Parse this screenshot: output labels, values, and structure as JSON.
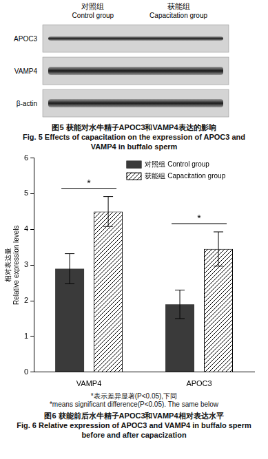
{
  "figure5": {
    "columns": [
      {
        "zh": "对照组",
        "en": "Control group"
      },
      {
        "zh": "获能组",
        "en": "Capacitation group"
      }
    ],
    "rows": [
      "APOC3",
      "VAMP4",
      "β-actin"
    ],
    "title": "图5  获能对水牛精子APOC3和VAMP4表达的影响",
    "subtitle": "Fig. 5    Effects of capacitation on the expression of APOC3 and VAMP4 in buffalo sperm"
  },
  "chart_data": {
    "type": "bar",
    "title": "图6  获能前后水牛精子APOC3和VAMP4相对表达水平",
    "subtitle": "Fig. 6    Relative expression of APOC3 and VAMP4 in buffalo sperm before and after capacization",
    "y_label": [
      "相对表达量",
      "Relative expression levels"
    ],
    "categories": [
      "VAMP4",
      "APOC3"
    ],
    "series": [
      {
        "name": "对照组 Control group",
        "color": "#3a3a3a",
        "marker": "solid",
        "values": [
          2.9,
          1.9
        ],
        "errors": [
          0.42,
          0.4
        ]
      },
      {
        "name": "获能组 Capacitation group",
        "color": "#000000",
        "marker": "hatched",
        "values": [
          4.5,
          3.45
        ],
        "errors": [
          0.42,
          0.48
        ]
      }
    ],
    "annotations": [
      {
        "text": "*",
        "category": "VAMP4"
      },
      {
        "text": "*",
        "category": "APOC3"
      }
    ],
    "footnote": [
      "*表示差异显著(P<0.05),下同",
      "*means significant difference(P<0.05). The same below"
    ],
    "ylim": [
      0,
      6
    ],
    "yticks": [
      0,
      1,
      2,
      3,
      4,
      5,
      6
    ],
    "grid": false,
    "legend": "upper right"
  }
}
